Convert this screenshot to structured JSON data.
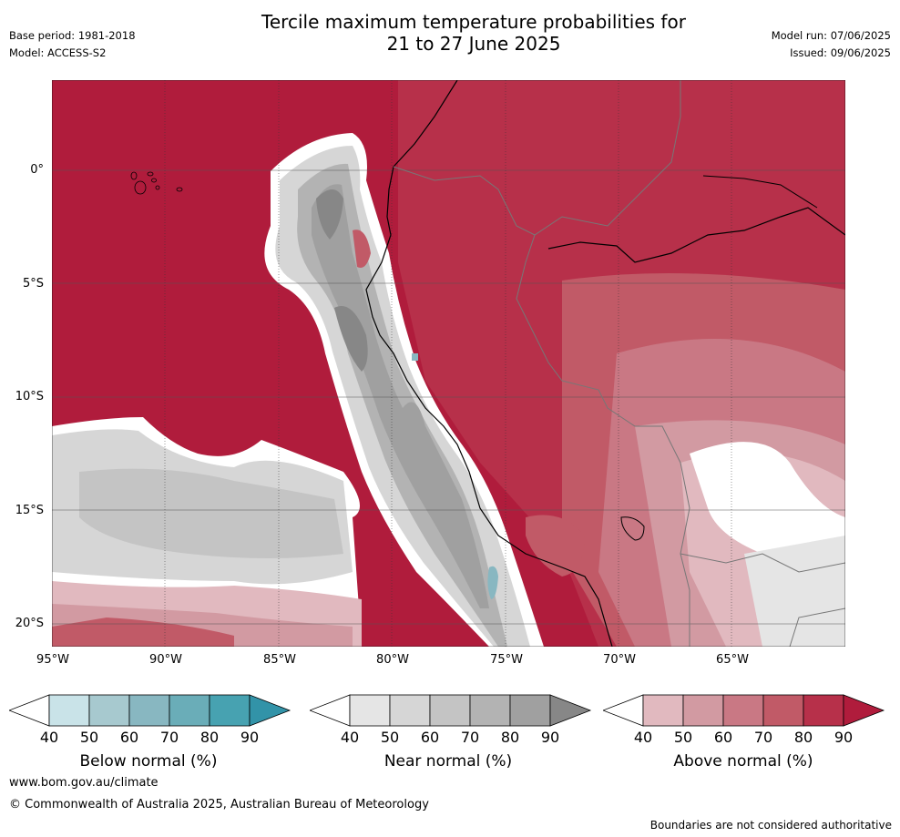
{
  "header": {
    "title_line1": "Tercile maximum temperature probabilities for",
    "title_line2": "21 to 27 June 2025",
    "base_period": "Base period: 1981-2018",
    "model": "Model: ACCESS-S2",
    "model_run": "Model run: 07/06/2025",
    "issued": "Issued: 09/06/2025"
  },
  "map": {
    "lat_labels": [
      "0°",
      "5°S",
      "10°S",
      "15°S",
      "20°S"
    ],
    "lon_labels": [
      "95°W",
      "90°W",
      "85°W",
      "80°W",
      "75°W",
      "70°W",
      "65°W"
    ],
    "region": "Eastern Pacific / western South America"
  },
  "legend": {
    "ticks": [
      "40",
      "50",
      "60",
      "70",
      "80",
      "90"
    ],
    "below": {
      "title": "Below normal (%)",
      "colors": [
        "#ffffff",
        "#c9e3e8",
        "#a7c9cf",
        "#88b7c1",
        "#6aadb8",
        "#47a2b1",
        "#3293a8"
      ]
    },
    "near": {
      "title": "Near normal (%)",
      "colors": [
        "#ffffff",
        "#e5e5e5",
        "#d6d6d6",
        "#c4c4c4",
        "#b3b3b3",
        "#a0a0a0",
        "#878787"
      ]
    },
    "above": {
      "title": "Above normal (%)",
      "colors": [
        "#ffffff",
        "#e1b9bf",
        "#d29aa2",
        "#c97884",
        "#c15a67",
        "#b7304a",
        "#b01c3c"
      ]
    }
  },
  "footer": {
    "url": "www.bom.gov.au/climate",
    "copyright": "© Commonwealth of Australia 2025, Australian Bureau of Meteorology",
    "disclaimer": "Boundaries are not considered authoritative"
  }
}
